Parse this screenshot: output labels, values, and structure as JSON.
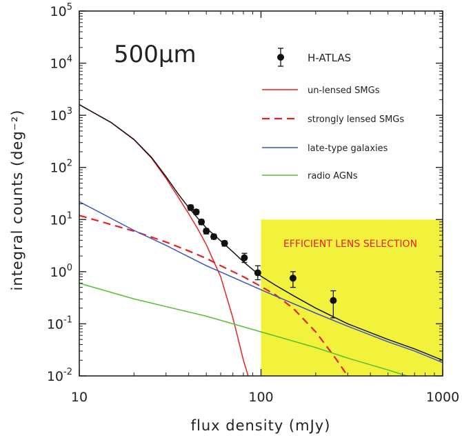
{
  "chart_data": {
    "type": "line",
    "annotation": "500μm",
    "xlabel": "flux density (mJy)",
    "ylabel": "integral counts (deg⁻²)",
    "x_scale": "log",
    "y_scale": "log",
    "xlim": [
      10,
      1000
    ],
    "ylim": [
      0.01,
      100000
    ],
    "x_ticks": [
      {
        "value": 10,
        "label": "10"
      },
      {
        "value": 100,
        "label": "100"
      },
      {
        "value": 1000,
        "label": "1000"
      }
    ],
    "y_ticks": [
      {
        "value": 0.01,
        "base": "10",
        "exp": "-2"
      },
      {
        "value": 0.1,
        "base": "10",
        "exp": "-1"
      },
      {
        "value": 1,
        "base": "10",
        "exp": "0"
      },
      {
        "value": 10,
        "base": "10",
        "exp": "1"
      },
      {
        "value": 100,
        "base": "10",
        "exp": "2"
      },
      {
        "value": 1000,
        "base": "10",
        "exp": "3"
      },
      {
        "value": 10000,
        "base": "10",
        "exp": "4"
      },
      {
        "value": 100000,
        "base": "10",
        "exp": "5"
      }
    ],
    "legend_placement": "top-right",
    "grid": false,
    "shaded_region": {
      "x_range": [
        100,
        1000
      ],
      "y_range": [
        0.01,
        10
      ],
      "label": "EFFICIENT LENS SELECTION",
      "fill": "#f2f23c",
      "label_color": "#e8201c"
    },
    "observations": {
      "name": "H-ATLAS",
      "color": "#111111",
      "points": [
        {
          "x": 41,
          "y": 17,
          "yerr_low": 15,
          "yerr_high": 19
        },
        {
          "x": 44,
          "y": 14,
          "yerr_low": 12.5,
          "yerr_high": 15.5
        },
        {
          "x": 47,
          "y": 9,
          "yerr_low": 8,
          "yerr_high": 10
        },
        {
          "x": 50,
          "y": 6,
          "yerr_low": 5.3,
          "yerr_high": 6.7
        },
        {
          "x": 55,
          "y": 4.7,
          "yerr_low": 4.2,
          "yerr_high": 5.2
        },
        {
          "x": 63,
          "y": 3.5,
          "yerr_low": 3.1,
          "yerr_high": 3.9
        },
        {
          "x": 81,
          "y": 1.85,
          "yerr_low": 1.5,
          "yerr_high": 2.25
        },
        {
          "x": 96,
          "y": 0.95,
          "yerr_low": 0.7,
          "yerr_high": 1.3
        },
        {
          "x": 150,
          "y": 0.75,
          "yerr_low": 0.5,
          "yerr_high": 1.0
        },
        {
          "x": 250,
          "y": 0.28,
          "yerr_low": 0.13,
          "yerr_high": 0.43
        }
      ]
    },
    "series": [
      {
        "name": "un-lensed SMGs",
        "color": "#e8201c",
        "dash": "solid",
        "x": [
          10,
          15,
          20,
          25,
          30,
          35,
          40,
          45,
          50,
          60,
          70,
          75,
          80,
          85
        ],
        "y": [
          1600,
          720,
          340,
          150,
          62,
          27,
          13,
          6.5,
          3.3,
          0.8,
          0.13,
          0.05,
          0.02,
          0.01
        ]
      },
      {
        "name": "strongly lensed SMGs",
        "color": "#e8201c",
        "dash": "dashed",
        "x": [
          10,
          20,
          30,
          40,
          50,
          60,
          80,
          100,
          120,
          150,
          200,
          250,
          300
        ],
        "y": [
          12,
          6,
          3.7,
          2.5,
          1.8,
          1.3,
          0.8,
          0.52,
          0.36,
          0.2,
          0.07,
          0.025,
          0.01
        ]
      },
      {
        "name": "late-type galaxies",
        "color": "#3a53c4",
        "dash": "solid",
        "x": [
          10,
          20,
          30,
          50,
          100,
          200,
          300,
          500,
          700,
          1000
        ],
        "y": [
          22,
          6.2,
          3.2,
          1.3,
          0.45,
          0.16,
          0.09,
          0.045,
          0.03,
          0.018
        ]
      },
      {
        "name": "radio AGNs",
        "color": "#52c234",
        "dash": "solid",
        "x": [
          10,
          20,
          50,
          100,
          200,
          300,
          500,
          700
        ],
        "y": [
          0.6,
          0.3,
          0.14,
          0.07,
          0.035,
          0.022,
          0.013,
          0.009
        ]
      },
      {
        "name": "",
        "color": "#111111",
        "dash": "solid",
        "x": [
          10,
          15,
          20,
          25,
          30,
          35,
          40,
          45,
          50,
          60,
          70,
          80,
          90,
          100,
          120,
          150,
          200,
          300,
          500,
          700,
          1000
        ],
        "y": [
          1600,
          725,
          345,
          155,
          67,
          31,
          17,
          10.5,
          6.9,
          3.9,
          2.4,
          1.55,
          1.1,
          0.82,
          0.55,
          0.35,
          0.2,
          0.1,
          0.05,
          0.033,
          0.02
        ]
      }
    ]
  }
}
